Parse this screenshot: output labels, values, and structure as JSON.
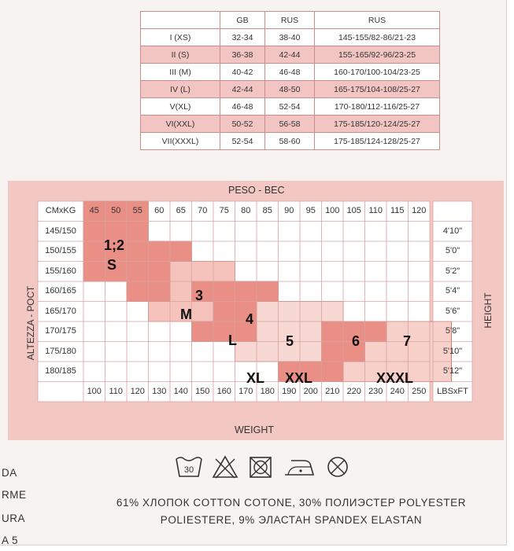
{
  "size_table": {
    "headers": [
      "",
      "GB",
      "RUS",
      "RUS"
    ],
    "rows": [
      [
        "I (XS)",
        "32-34",
        "38-40",
        "145-155/82-86/21-23"
      ],
      [
        "II (S)",
        "36-38",
        "42-44",
        "155-165/92-96/23-25"
      ],
      [
        "III (M)",
        "40-42",
        "46-48",
        "160-170/100-104/23-25"
      ],
      [
        "IV (L)",
        "42-44",
        "48-50",
        "165-175/104-108/25-27"
      ],
      [
        "V(XL)",
        "46-48",
        "52-54",
        "170-180/112-116/25-27"
      ],
      [
        "VI(XXL)",
        "50-52",
        "56-58",
        "175-185/120-124/25-27"
      ],
      [
        "VII(XXXL)",
        "52-54",
        "58-60",
        "175-185/124-128/25-27"
      ]
    ]
  },
  "chart": {
    "top_title": "PESO - ВЕС",
    "bottom_title": "WEIGHT",
    "left_title": "ALTEZZA - РОСТ",
    "right_title": "HEIGHT",
    "corner_top": "CMxKG",
    "corner_bottom": "LBSxFT",
    "kg": [
      "45",
      "50",
      "55",
      "60",
      "65",
      "70",
      "75",
      "80",
      "85",
      "90",
      "95",
      "100",
      "105",
      "110",
      "115",
      "120"
    ],
    "lbs": [
      "100",
      "110",
      "120",
      "130",
      "140",
      "150",
      "160",
      "170",
      "180",
      "190",
      "200",
      "210",
      "220",
      "230",
      "240",
      "250"
    ],
    "cm": [
      "145/150",
      "150/155",
      "155/160",
      "160/165",
      "165/170",
      "170/175",
      "175/180",
      "180/185"
    ],
    "ft": [
      "4'10\"",
      "5'0\"",
      "5'2\"",
      "5'4\"",
      "5'6\"",
      "5'8\"",
      "5'10\"",
      "5'12\""
    ],
    "zones": [
      {
        "line1": "1;2",
        "line2": "S",
        "color": "#e98f86"
      },
      {
        "line1": "3",
        "line2": "M",
        "color": "#f5c3bb"
      },
      {
        "line1": "4",
        "line2": "L",
        "color": "#e98f86"
      },
      {
        "line1": "5",
        "line2": "XL",
        "color": "#f8d8d2"
      },
      {
        "line1": "6",
        "line2": "XXL",
        "color": "#e98f86"
      },
      {
        "line1": "7",
        "line2": "XXXL",
        "color": "#f7d0c9"
      }
    ]
  },
  "care_icons": [
    "wash-30-icon",
    "no-bleach-icon",
    "no-tumble-dry-icon",
    "iron-low-icon",
    "no-dry-clean-icon"
  ],
  "wash_temp": "30",
  "fabric_line1": "61% ХЛОПОК COTTON COTONE, 30% ПОЛИЭСТЕР POLYESTER",
  "fabric_line2": "POLIESTERE, 9% ЭЛАСТАН SPANDEX ELASTAN",
  "edge_text": [
    "DA",
    "RME",
    "URA",
    "A 5"
  ]
}
